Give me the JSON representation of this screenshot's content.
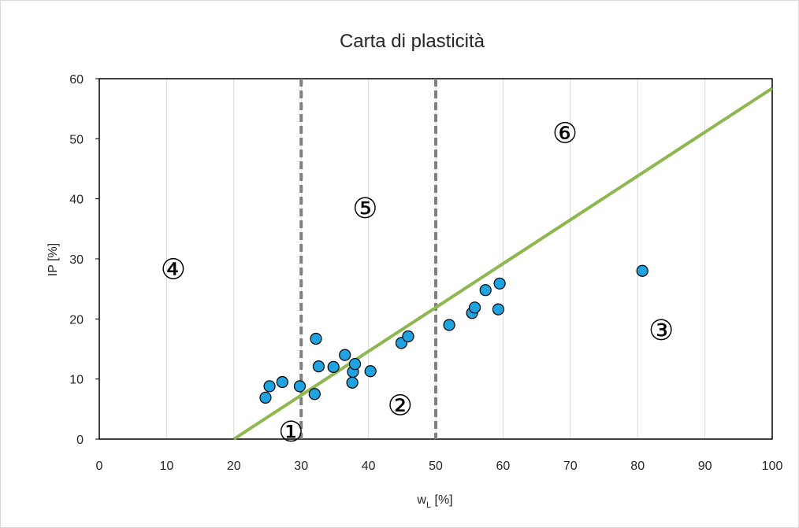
{
  "chart_data": {
    "type": "scatter",
    "title": "Carta di plasticità",
    "xlabel": "w",
    "xlabel_sub": "L",
    "xlabel_unit": " [%]",
    "ylabel": "IP [%]",
    "xlim": [
      0,
      100
    ],
    "ylim": [
      0,
      60
    ],
    "xticks": [
      0,
      10,
      20,
      30,
      40,
      50,
      60,
      70,
      80,
      90,
      100
    ],
    "yticks": [
      0,
      10,
      20,
      30,
      40,
      50,
      60
    ],
    "grid": "vertical",
    "legend": "none",
    "points_color": "#1fa3e0",
    "points": [
      {
        "x": 24.7,
        "y": 6.9
      },
      {
        "x": 25.3,
        "y": 8.8
      },
      {
        "x": 27.2,
        "y": 9.5
      },
      {
        "x": 29.8,
        "y": 8.8
      },
      {
        "x": 32.0,
        "y": 7.5
      },
      {
        "x": 32.2,
        "y": 16.7
      },
      {
        "x": 32.6,
        "y": 12.1
      },
      {
        "x": 34.8,
        "y": 12.0
      },
      {
        "x": 36.5,
        "y": 14.0
      },
      {
        "x": 37.6,
        "y": 9.4
      },
      {
        "x": 37.7,
        "y": 11.2
      },
      {
        "x": 38.0,
        "y": 12.5
      },
      {
        "x": 40.3,
        "y": 11.3
      },
      {
        "x": 44.9,
        "y": 16.0
      },
      {
        "x": 45.9,
        "y": 17.1
      },
      {
        "x": 52.0,
        "y": 19.0
      },
      {
        "x": 55.4,
        "y": 21.0
      },
      {
        "x": 55.8,
        "y": 21.9
      },
      {
        "x": 57.4,
        "y": 24.8
      },
      {
        "x": 59.3,
        "y": 21.6
      },
      {
        "x": 59.5,
        "y": 25.9
      },
      {
        "x": 80.7,
        "y": 28.0
      }
    ],
    "a_line": {
      "color": "#8fb74f",
      "x": [
        20,
        100
      ],
      "y": [
        0,
        58.4
      ]
    },
    "vertical_lines": {
      "color": "#808080",
      "x": [
        30,
        50
      ]
    },
    "zones": [
      {
        "label": "1",
        "glyph": "①",
        "x": 28.5,
        "y": 1.2
      },
      {
        "label": "2",
        "glyph": "②",
        "x": 44.7,
        "y": 5.6
      },
      {
        "label": "3",
        "glyph": "③",
        "x": 83.5,
        "y": 18.1
      },
      {
        "label": "4",
        "glyph": "④",
        "x": 11.0,
        "y": 28.2
      },
      {
        "label": "5",
        "glyph": "⑤",
        "x": 39.5,
        "y": 38.4
      },
      {
        "label": "6",
        "glyph": "⑥",
        "x": 69.2,
        "y": 50.9
      }
    ]
  }
}
